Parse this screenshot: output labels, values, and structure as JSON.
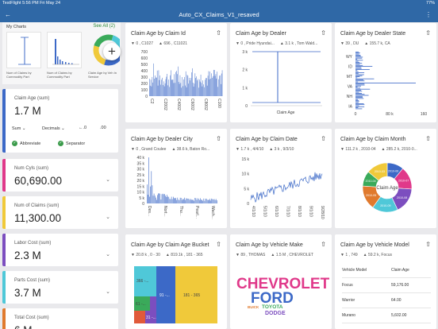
{
  "status": {
    "left": "TestFlight  5:56 PM  Fri May 24",
    "center": "",
    "right": "77%"
  },
  "app": {
    "title": "Auto_CX_Claims_V1_resaved",
    "back_icon": "back-arrow-icon",
    "menu_icon": "more-vertical-icon"
  },
  "my_charts": {
    "title": "My Charts",
    "see_all": "See All (2)",
    "thumbs": [
      {
        "label": "Num of Claims by Commodity Part"
      },
      {
        "label": "Num of Claims by Commodity Part"
      },
      {
        "label": "Claim Age by Veh In Service"
      }
    ]
  },
  "kpis": [
    {
      "label": "Claim Age (sum)",
      "value": "1.7 M",
      "color": "#3c69c7"
    },
    {
      "label": "Num Cyls (sum)",
      "value": "60,690.00",
      "color": "#e0398a"
    },
    {
      "label": "Num of Claims (sum)",
      "value": "11,300.00",
      "color": "#f0c93a"
    },
    {
      "label": "Labor Cost (sum)",
      "value": "2.3 M",
      "color": "#7c4ebf"
    },
    {
      "label": "Parts Cost (sum)",
      "value": "3.7 M",
      "color": "#4fc8d8"
    },
    {
      "label": "Total Cost (sum)",
      "value": "6 M",
      "color": "#e07a2e"
    }
  ],
  "kpi_options": {
    "agg": "Sum",
    "format": "Decimals",
    "abbreviate": "Abbreviate",
    "separator": "Separator"
  },
  "cards": [
    {
      "title": "Claim Age by Claim Id",
      "s1": "0 , C1027",
      "s2": "696 , C11021"
    },
    {
      "title": "Claim Age by Dealer",
      "s1": "0 , Pride Hyundai...",
      "s2": "3.1 k , Tom Wald..."
    },
    {
      "title": "Claim Age by Dealer State",
      "s1": "39 , DU",
      "s2": "155.7 k, CA"
    },
    {
      "title": "Claim Age by Dealer City",
      "s1": "0 , Grand Coulee",
      "s2": "38.6 k, Baton Ro..."
    },
    {
      "title": "Claim Age by Claim Date",
      "s1": "1.7 k , 4/4/10",
      "s2": "3 k , 9/3/10"
    },
    {
      "title": "Claim Age by Claim Month",
      "s1": "111.2 k , 2010-04",
      "s2": "285.2 k, 2010-0..."
    },
    {
      "title": "Claim Age by Claim Age Bucket",
      "s1": "20.8 k , 0 - 30",
      "s2": "819.1k , 181 - 365"
    },
    {
      "title": "Claim Age by Vehicle Make",
      "s1": "89 , THOMAS",
      "s2": "1.5 M , CHEVROLET"
    },
    {
      "title": "Claim Age by Vehicle Model",
      "s1": "1 , 749",
      "s2": "59.2 k, Focus"
    }
  ],
  "charts": {
    "claim_id": {
      "yticks": [
        "700",
        "600",
        "500",
        "400",
        "300",
        "200",
        "100",
        "0"
      ],
      "xticks": [
        "C2",
        "C2002",
        "C4002",
        "C6002",
        "C8002",
        "C100"
      ]
    },
    "dealer": {
      "yticks": [
        "3 k",
        "2 k",
        "1 k",
        "0"
      ],
      "xlabel": "Claim Age"
    },
    "dealer_state": {
      "categories": [
        "WY",
        "ID",
        "MT",
        "VA",
        "NH",
        "IA"
      ],
      "xticks": [
        "0",
        "80 k",
        "160"
      ]
    },
    "dealer_city": {
      "yticks": [
        "40 k",
        "35 k",
        "30 k",
        "25 k",
        "20 k",
        "15 k",
        "10 k",
        "5 k",
        "0"
      ],
      "xticks": [
        "Des...",
        "Nort...",
        "Thu...",
        "Pearl...",
        "Wach..."
      ]
    },
    "claim_date": {
      "yticks": [
        "15 k",
        "10 k",
        "5 k",
        "0"
      ],
      "xticks": [
        "4/1/10",
        "5/1/10",
        "6/1/10",
        "7/1/10",
        "8/1/10",
        "9/1/10",
        "9/28/10"
      ]
    },
    "claim_month": {
      "center": "Claim Age",
      "slices": [
        {
          "label": "2010-06",
          "pct": 11,
          "color": "#3c69c7"
        },
        {
          "label": "2010-07",
          "pct": 15,
          "color": "#e0398a"
        },
        {
          "label": "2010-08",
          "pct": 17,
          "color": "#7c4ebf"
        },
        {
          "label": "2010-09",
          "pct": 17,
          "color": "#4fc8d8"
        },
        {
          "label": "2010-05",
          "pct": 16,
          "color": "#e07a2e"
        },
        {
          "label": "2010-04",
          "pct": 10,
          "color": "#3aaa5a"
        },
        {
          "label": "2010-03",
          "pct": 14,
          "color": "#f0c93a"
        }
      ]
    },
    "age_bucket": {
      "labels": [
        "366 -...",
        "91 -...",
        "181 - 365",
        "61 -...",
        "31 -..."
      ]
    },
    "vehicle_make": {
      "words": [
        "CHEVROLET",
        "FORD",
        "TOYOTA",
        "BUICK",
        "DODGE"
      ]
    },
    "vehicle_model": {
      "header": [
        "Vehicle Model",
        "Claim Age"
      ],
      "rows": [
        [
          "Focus",
          "59,176.00"
        ],
        [
          "Warrior",
          "64.00"
        ],
        [
          "Murano",
          "5,602.00"
        ]
      ]
    }
  }
}
